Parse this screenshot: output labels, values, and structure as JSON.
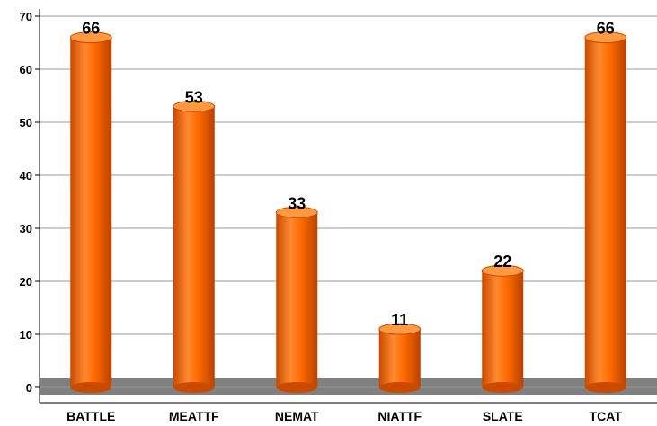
{
  "chart_data": {
    "type": "bar",
    "title": "",
    "xlabel": "",
    "ylabel": "",
    "categories": [
      "BATTLE",
      "MEATTF",
      "NEMAT",
      "NIATTF",
      "SLATE",
      "TCAT"
    ],
    "values": [
      66,
      53,
      33,
      11,
      22,
      66
    ],
    "data_labels": [
      "66",
      "53",
      "33",
      "11",
      "22",
      "66"
    ],
    "ylim": [
      0,
      75
    ],
    "yticks": [
      "0",
      "10",
      "20",
      "30",
      "40",
      "50",
      "60",
      "70"
    ],
    "grid": true,
    "legend": "none",
    "colors": {
      "bar": "#ff6a00",
      "bar_dark": "#c94a00",
      "bar_light": "#ff9a40",
      "floor": "#808080",
      "grid": "#999999"
    }
  }
}
